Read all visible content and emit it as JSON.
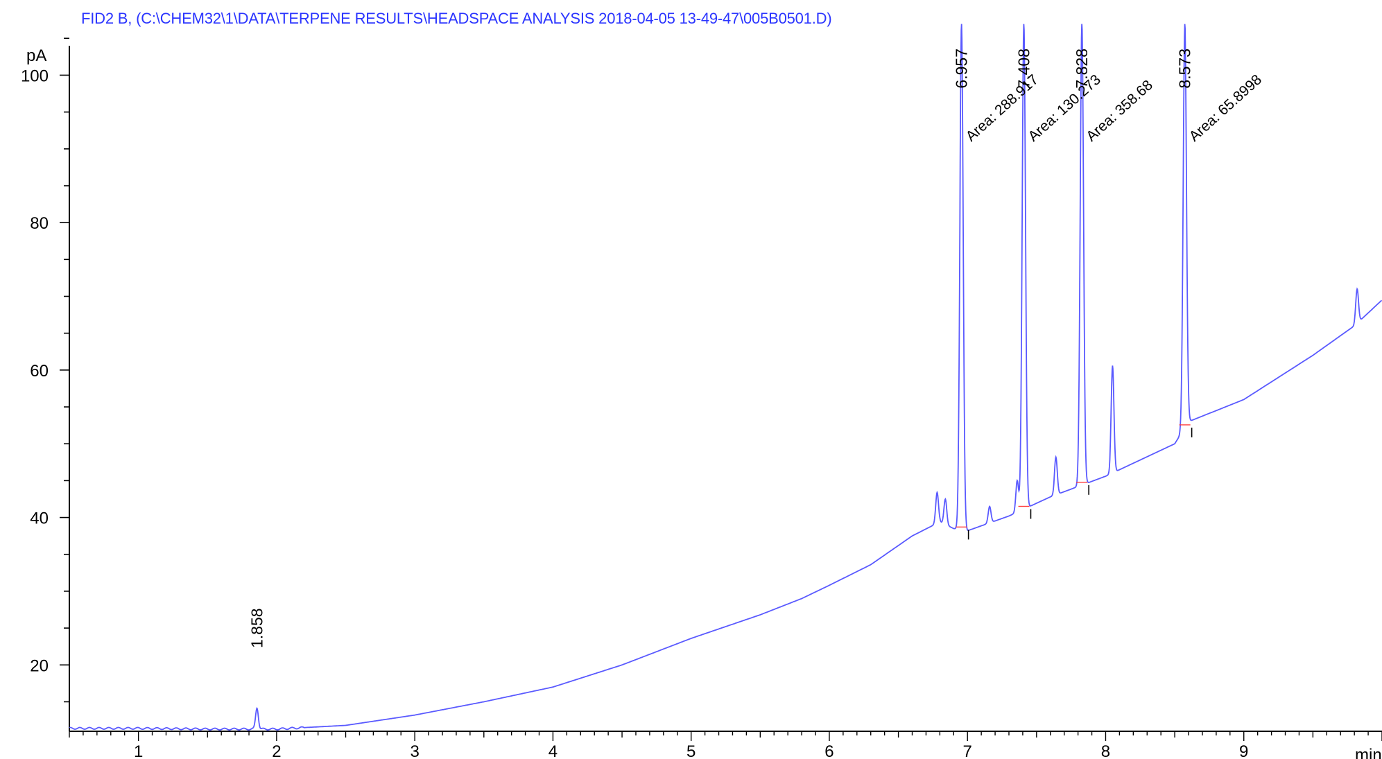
{
  "chart_data": {
    "type": "line",
    "title": "FID2 B,  (C:\\CHEM32\\1\\DATA\\TERPENE RESULTS\\HEADSPACE ANALYSIS 2018-04-05 13-49-47\\005B0501.D)",
    "xlabel": "min",
    "ylabel": "pA",
    "xlim": [
      0.5,
      10.0
    ],
    "ylim": [
      11,
      107
    ],
    "x_ticks": [
      1,
      2,
      3,
      4,
      5,
      6,
      7,
      8,
      9
    ],
    "y_ticks": [
      20,
      40,
      60,
      80,
      100
    ],
    "line_color": "#5a5aff",
    "peak_labels": [
      {
        "rt": 1.858,
        "label": "1.858"
      },
      {
        "rt": 6.957,
        "label": "6.957"
      },
      {
        "rt": 7.408,
        "label": "7.408"
      },
      {
        "rt": 7.828,
        "label": "7.828"
      },
      {
        "rt": 8.573,
        "label": "8.573"
      }
    ],
    "area_labels": [
      {
        "rt": 6.957,
        "label": "Area: 288.917"
      },
      {
        "rt": 7.408,
        "label": "Area: 130.273"
      },
      {
        "rt": 7.828,
        "label": "Area: 358.68"
      },
      {
        "rt": 8.573,
        "label": "Area: 65.8998"
      }
    ],
    "baseline": [
      [
        0.5,
        11.4
      ],
      [
        1.0,
        11.4
      ],
      [
        1.5,
        11.3
      ],
      [
        2.0,
        11.3
      ],
      [
        2.5,
        11.8
      ],
      [
        3.0,
        13.2
      ],
      [
        3.5,
        15.0
      ],
      [
        4.0,
        17.0
      ],
      [
        4.25,
        18.5
      ],
      [
        4.5,
        20.0
      ],
      [
        5.0,
        23.6
      ],
      [
        5.5,
        26.8
      ],
      [
        5.8,
        29.0
      ],
      [
        6.0,
        30.8
      ],
      [
        6.3,
        33.6
      ],
      [
        6.6,
        37.5
      ],
      [
        6.8,
        39.4
      ],
      [
        6.9,
        38.5
      ],
      [
        7.0,
        38.2
      ],
      [
        7.3,
        40.2
      ],
      [
        7.6,
        42.8
      ],
      [
        8.0,
        45.6
      ],
      [
        8.5,
        50.0
      ],
      [
        8.6,
        53.0
      ],
      [
        9.0,
        56.0
      ],
      [
        9.5,
        62.0
      ],
      [
        9.8,
        66.0
      ],
      [
        10.0,
        69.5
      ]
    ],
    "series": [
      {
        "peaks": [
          {
            "rt": 1.858,
            "height": 14.2
          },
          {
            "rt": 6.78,
            "height": 43.4
          },
          {
            "rt": 6.84,
            "height": 42.5
          },
          {
            "rt": 6.957,
            "height": 107
          },
          {
            "rt": 7.16,
            "height": 41.5
          },
          {
            "rt": 7.36,
            "height": 45.0
          },
          {
            "rt": 7.408,
            "height": 107
          },
          {
            "rt": 7.64,
            "height": 48.2
          },
          {
            "rt": 7.828,
            "height": 107
          },
          {
            "rt": 8.05,
            "height": 60.6
          },
          {
            "rt": 8.573,
            "height": 107
          },
          {
            "rt": 9.82,
            "height": 71.0
          }
        ]
      }
    ]
  }
}
